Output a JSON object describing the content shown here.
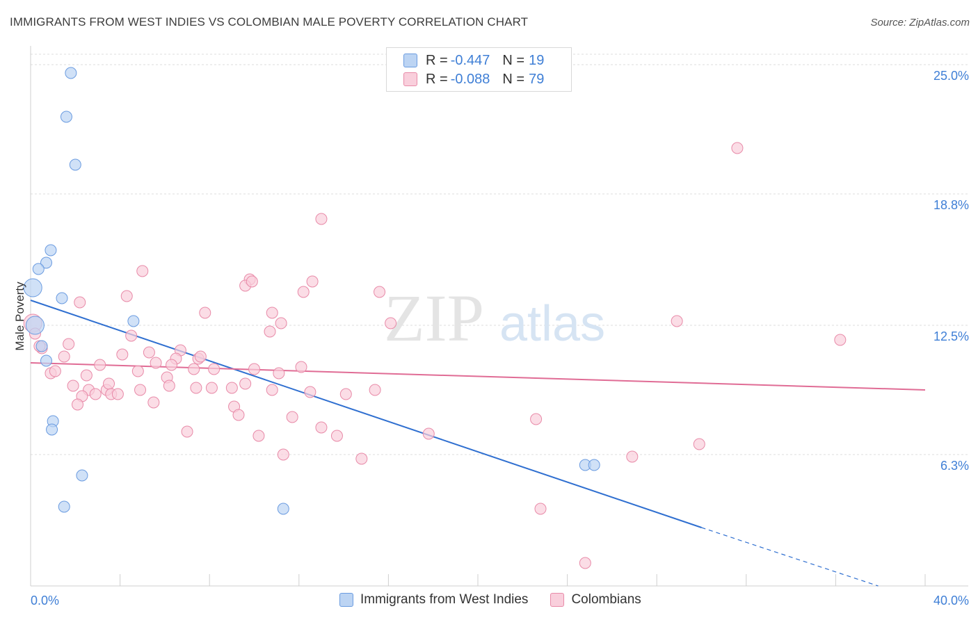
{
  "title": "IMMIGRANTS FROM WEST INDIES VS COLOMBIAN MALE POVERTY CORRELATION CHART",
  "source": "Source: ZipAtlas.com",
  "watermark": {
    "zip": "ZIP",
    "atlas": "atlas"
  },
  "legend": {
    "rows": [
      {
        "r_label": "R = ",
        "r_value": "-0.447",
        "n_label": "N = ",
        "n_value": "19",
        "color": "#bcd4f3",
        "border": "#6a9be0"
      },
      {
        "r_label": "R = ",
        "r_value": "-0.088",
        "n_label": "N = ",
        "n_value": "79",
        "color": "#f9cfdc",
        "border": "#e88aa8"
      }
    ]
  },
  "bottom_legend": [
    {
      "label": "Immigrants from West Indies",
      "color": "#bcd4f3",
      "border": "#6a9be0"
    },
    {
      "label": "Colombians",
      "color": "#f9cfdc",
      "border": "#e88aa8"
    }
  ],
  "chart_data": {
    "type": "scatter",
    "xlabel": "",
    "ylabel": "Male Poverty",
    "xlim": [
      0,
      40
    ],
    "ylim": [
      0,
      25.5
    ],
    "x_tick_labels": [
      "0.0%",
      "40.0%"
    ],
    "y_ticks": [
      6.3,
      12.5,
      18.8,
      25.0
    ],
    "y_tick_labels": [
      "6.3%",
      "12.5%",
      "18.8%",
      "25.0%"
    ],
    "grid": "horizontal dashed",
    "series": [
      {
        "name": "Immigrants from West Indies",
        "color": "#6a9be0",
        "fill": "#bcd4f3",
        "trend": {
          "x0": 0.0,
          "y0": 13.7,
          "x1": 30.0,
          "y1": 2.8,
          "dash_to_x": 37.9,
          "dash_to_y": 0.0,
          "color": "#2f6fd0"
        },
        "points": [
          {
            "x": 1.8,
            "y": 24.6
          },
          {
            "x": 1.6,
            "y": 22.5
          },
          {
            "x": 2.0,
            "y": 20.2
          },
          {
            "x": 0.9,
            "y": 16.1
          },
          {
            "x": 0.7,
            "y": 15.5
          },
          {
            "x": 0.35,
            "y": 15.2
          },
          {
            "x": 0.1,
            "y": 14.3
          },
          {
            "x": 1.4,
            "y": 13.8
          },
          {
            "x": 0.2,
            "y": 12.5
          },
          {
            "x": 4.6,
            "y": 12.7
          },
          {
            "x": 0.5,
            "y": 11.5
          },
          {
            "x": 0.7,
            "y": 10.8
          },
          {
            "x": 1.0,
            "y": 7.9
          },
          {
            "x": 0.95,
            "y": 7.5
          },
          {
            "x": 2.3,
            "y": 5.3
          },
          {
            "x": 1.5,
            "y": 3.8
          },
          {
            "x": 11.3,
            "y": 3.7
          },
          {
            "x": 24.8,
            "y": 5.8
          },
          {
            "x": 25.2,
            "y": 5.8
          }
        ]
      },
      {
        "name": "Colombians",
        "color": "#e88aa8",
        "fill": "#f9cfdc",
        "trend": {
          "x0": 0.0,
          "y0": 10.7,
          "x1": 40.0,
          "y1": 9.4,
          "color": "#e06c95"
        },
        "points": [
          {
            "x": 31.6,
            "y": 21.0
          },
          {
            "x": 13.0,
            "y": 17.6
          },
          {
            "x": 5.0,
            "y": 15.1
          },
          {
            "x": 9.8,
            "y": 14.7
          },
          {
            "x": 9.6,
            "y": 14.4
          },
          {
            "x": 9.9,
            "y": 14.6
          },
          {
            "x": 12.6,
            "y": 14.6
          },
          {
            "x": 12.2,
            "y": 14.1
          },
          {
            "x": 15.6,
            "y": 14.1
          },
          {
            "x": 4.3,
            "y": 13.9
          },
          {
            "x": 2.2,
            "y": 13.6
          },
          {
            "x": 7.8,
            "y": 13.1
          },
          {
            "x": 10.8,
            "y": 13.1
          },
          {
            "x": 11.2,
            "y": 12.6
          },
          {
            "x": 10.7,
            "y": 12.2
          },
          {
            "x": 16.1,
            "y": 12.6
          },
          {
            "x": 4.5,
            "y": 12.0
          },
          {
            "x": 28.9,
            "y": 12.7
          },
          {
            "x": 0.1,
            "y": 12.6
          },
          {
            "x": 0.5,
            "y": 11.4
          },
          {
            "x": 1.7,
            "y": 11.6
          },
          {
            "x": 1.5,
            "y": 11.0
          },
          {
            "x": 4.1,
            "y": 11.1
          },
          {
            "x": 5.3,
            "y": 11.2
          },
          {
            "x": 6.7,
            "y": 11.3
          },
          {
            "x": 6.5,
            "y": 10.9
          },
          {
            "x": 7.5,
            "y": 10.9
          },
          {
            "x": 0.9,
            "y": 10.2
          },
          {
            "x": 1.1,
            "y": 10.3
          },
          {
            "x": 3.1,
            "y": 10.6
          },
          {
            "x": 4.8,
            "y": 10.3
          },
          {
            "x": 5.6,
            "y": 10.7
          },
          {
            "x": 6.3,
            "y": 10.6
          },
          {
            "x": 7.3,
            "y": 10.4
          },
          {
            "x": 8.2,
            "y": 10.4
          },
          {
            "x": 10.0,
            "y": 10.4
          },
          {
            "x": 12.1,
            "y": 10.5
          },
          {
            "x": 11.1,
            "y": 10.2
          },
          {
            "x": 2.5,
            "y": 10.1
          },
          {
            "x": 6.1,
            "y": 10.0
          },
          {
            "x": 6.2,
            "y": 9.6
          },
          {
            "x": 1.9,
            "y": 9.6
          },
          {
            "x": 2.6,
            "y": 9.4
          },
          {
            "x": 2.3,
            "y": 9.1
          },
          {
            "x": 3.4,
            "y": 9.4
          },
          {
            "x": 3.5,
            "y": 9.7
          },
          {
            "x": 3.6,
            "y": 9.2
          },
          {
            "x": 2.9,
            "y": 9.2
          },
          {
            "x": 3.9,
            "y": 9.2
          },
          {
            "x": 4.9,
            "y": 9.4
          },
          {
            "x": 7.4,
            "y": 9.5
          },
          {
            "x": 8.1,
            "y": 9.5
          },
          {
            "x": 9.0,
            "y": 9.5
          },
          {
            "x": 9.6,
            "y": 9.7
          },
          {
            "x": 10.8,
            "y": 9.4
          },
          {
            "x": 12.5,
            "y": 9.3
          },
          {
            "x": 14.1,
            "y": 9.2
          },
          {
            "x": 15.4,
            "y": 9.4
          },
          {
            "x": 2.1,
            "y": 8.7
          },
          {
            "x": 5.5,
            "y": 8.8
          },
          {
            "x": 9.1,
            "y": 8.6
          },
          {
            "x": 9.3,
            "y": 8.2
          },
          {
            "x": 11.7,
            "y": 8.1
          },
          {
            "x": 22.6,
            "y": 8.0
          },
          {
            "x": 13.0,
            "y": 7.6
          },
          {
            "x": 7.0,
            "y": 7.4
          },
          {
            "x": 10.2,
            "y": 7.2
          },
          {
            "x": 13.7,
            "y": 7.2
          },
          {
            "x": 17.8,
            "y": 7.3
          },
          {
            "x": 29.9,
            "y": 6.8
          },
          {
            "x": 11.3,
            "y": 6.3
          },
          {
            "x": 14.8,
            "y": 6.1
          },
          {
            "x": 26.9,
            "y": 6.2
          },
          {
            "x": 22.8,
            "y": 3.7
          },
          {
            "x": 24.8,
            "y": 1.1
          },
          {
            "x": 36.2,
            "y": 11.8
          },
          {
            "x": 0.2,
            "y": 12.1
          },
          {
            "x": 0.4,
            "y": 11.5
          },
          {
            "x": 7.6,
            "y": 11.0
          }
        ]
      }
    ]
  }
}
